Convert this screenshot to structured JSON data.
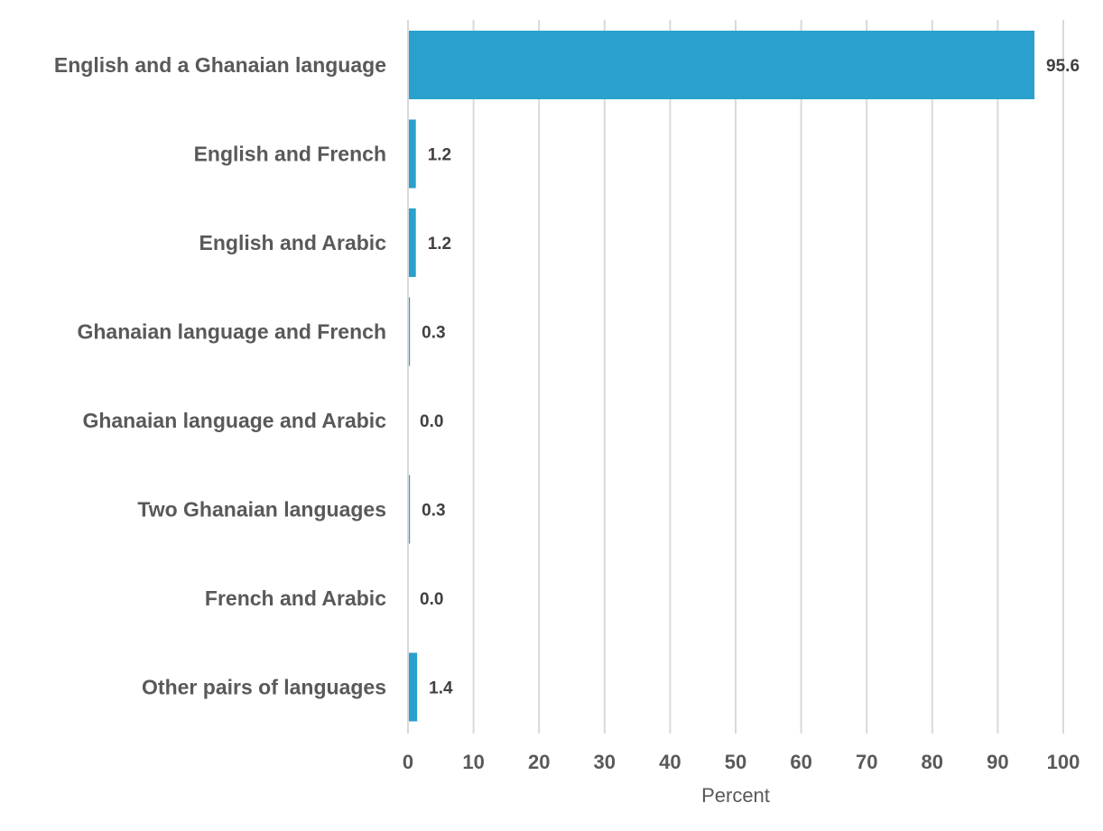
{
  "chart_data": {
    "type": "bar",
    "orientation": "horizontal",
    "categories": [
      "English and a Ghanaian language",
      "English and French",
      "English and Arabic",
      "Ghanaian language and French",
      "Ghanaian language and Arabic",
      "Two Ghanaian languages",
      "French and Arabic",
      "Other pairs of languages"
    ],
    "values": [
      95.6,
      1.2,
      1.2,
      0.3,
      0.0,
      0.3,
      0.0,
      1.4
    ],
    "value_labels": [
      "95.6",
      "1.2",
      "1.2",
      "0.3",
      "0.0",
      "0.3",
      "0.0",
      "1.4"
    ],
    "xlabel": "Percent",
    "xlim": [
      0,
      100
    ],
    "xticks": [
      0,
      10,
      20,
      30,
      40,
      50,
      60,
      70,
      80,
      90,
      100
    ],
    "xtick_labels": [
      "0",
      "10",
      "20",
      "30",
      "40",
      "50",
      "60",
      "70",
      "80",
      "90",
      "100"
    ],
    "grid": "vertical",
    "legend": "none",
    "bar_color": "#2aa0cc"
  }
}
